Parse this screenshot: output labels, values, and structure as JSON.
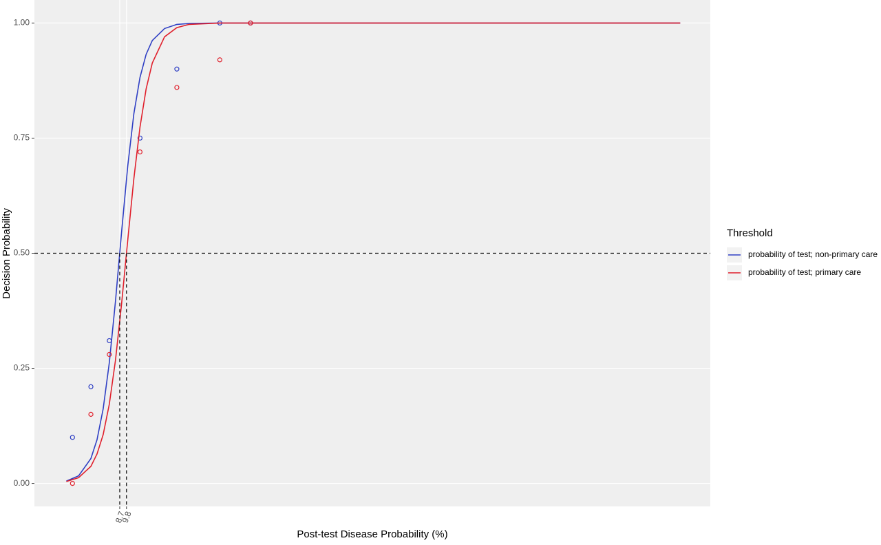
{
  "chart_data": {
    "type": "line",
    "x_label": "Post-test Disease Probability (%)",
    "y_label": "Decision Probability",
    "legend_title": "Threshold",
    "xlim": [
      -5.2,
      104.9
    ],
    "xticks": [
      8.7,
      9.8
    ],
    "ylim": [
      -0.05,
      1.05
    ],
    "yticks": [
      {
        "value": 0,
        "label": "0.00"
      },
      {
        "value": 0.25,
        "label": "0.25"
      },
      {
        "value": 0.5,
        "label": "0.50"
      },
      {
        "value": 0.75,
        "label": "0.75"
      },
      {
        "value": 1,
        "label": "1.00"
      }
    ],
    "hline": 0.5,
    "vlines": [
      8.7,
      9.8
    ],
    "grid": true,
    "series": [
      {
        "name": "probability of test; non-primary care",
        "color": "#2f3fc4",
        "x": [
          0,
          2,
          4,
          5,
          6,
          7,
          8,
          9,
          10,
          11,
          12,
          13,
          14,
          16,
          18,
          20,
          25,
          30,
          100
        ],
        "values": [
          0.005,
          0.0165,
          0.054,
          0.095,
          0.162,
          0.262,
          0.395,
          0.546,
          0.689,
          0.803,
          0.882,
          0.932,
          0.962,
          0.988,
          0.997,
          0.999,
          1,
          1,
          1
        ],
        "point_x": [
          1,
          4,
          7,
          12,
          18,
          25,
          30
        ],
        "point_values": [
          0.1,
          0.21,
          0.31,
          0.75,
          0.9,
          1.0,
          1.0
        ]
      },
      {
        "name": "probability of test; primary care",
        "color": "#e0202c",
        "x": [
          0,
          2,
          4,
          5,
          6,
          7,
          8,
          9,
          10,
          11,
          12,
          13,
          14,
          16,
          18,
          20,
          25,
          30,
          100
        ],
        "values": [
          0.004,
          0.0125,
          0.037,
          0.064,
          0.106,
          0.172,
          0.267,
          0.39,
          0.528,
          0.662,
          0.774,
          0.857,
          0.913,
          0.97,
          0.99,
          0.997,
          1,
          1,
          1
        ],
        "point_x": [
          1,
          4,
          7,
          12,
          18,
          25,
          30
        ],
        "point_values": [
          0.0,
          0.15,
          0.28,
          0.72,
          0.86,
          0.92,
          1.0
        ]
      }
    ]
  }
}
